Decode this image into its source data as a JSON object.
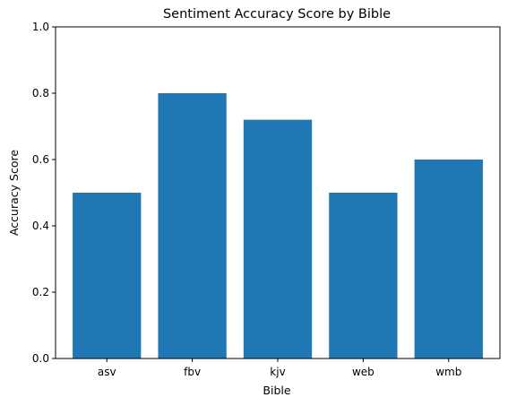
{
  "chart_data": {
    "type": "bar",
    "title": "Sentiment Accuracy Score by Bible",
    "xlabel": "Bible",
    "ylabel": "Accuracy Score",
    "categories": [
      "asv",
      "fbv",
      "kjv",
      "web",
      "wmb"
    ],
    "values": [
      0.5,
      0.8,
      0.72,
      0.5,
      0.6
    ],
    "ylim": [
      0,
      1.0
    ],
    "yticks": [
      "0.0",
      "0.2",
      "0.4",
      "0.6",
      "0.8",
      "1.0"
    ],
    "grid": false,
    "legend": "none",
    "bar_color": "#1f77b4"
  }
}
